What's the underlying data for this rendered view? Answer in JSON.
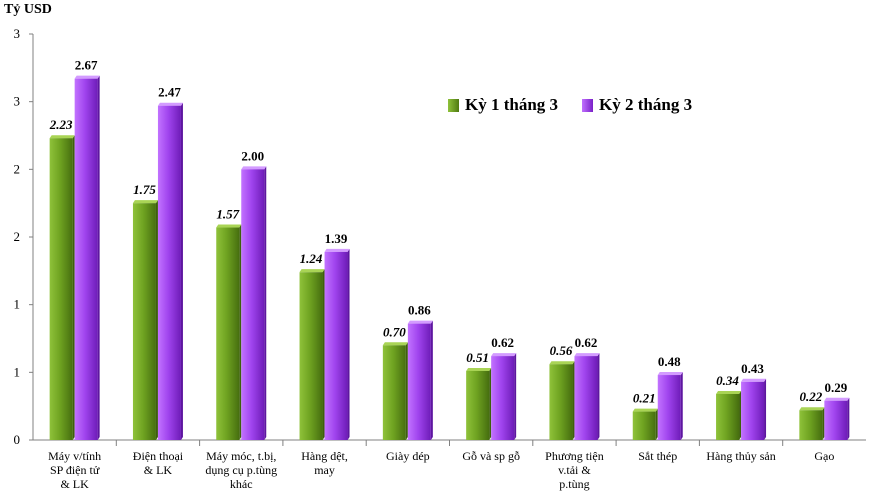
{
  "chart_data": {
    "type": "bar",
    "ylabel": "Tỷ USD",
    "categories": [
      "Máy v/tính SP điện tử & LK",
      "Điện thoại & LK",
      "Máy móc, t.bị, dụng cụ p.tùng khác",
      "Hàng dệt, may",
      "Giày dép",
      "Gỗ và sp gỗ",
      "Phương tiện v.tải & p.tùng",
      "Sắt thép",
      "Hàng thủy sản",
      "Gạo"
    ],
    "category_lines": [
      [
        "Máy v/tính",
        "SP điện tử",
        "& LK"
      ],
      [
        "Điện thoại",
        "& LK"
      ],
      [
        "Máy móc, t.bị,",
        "dụng cụ p.tùng",
        "khác"
      ],
      [
        "Hàng dệt,",
        "may"
      ],
      [
        "Giày dép"
      ],
      [
        "Gỗ và sp gỗ"
      ],
      [
        "Phương tiện",
        "v.tải &",
        "p.tùng"
      ],
      [
        "Sắt thép"
      ],
      [
        "Hàng thủy sản"
      ],
      [
        "Gạo"
      ]
    ],
    "series": [
      {
        "name": "Kỳ 1 tháng 3",
        "color": "#6a9a1f",
        "values": [
          2.23,
          1.75,
          1.57,
          1.24,
          0.7,
          0.51,
          0.56,
          0.21,
          0.34,
          0.22
        ],
        "labels": [
          "2.23",
          "1.75",
          "1.57",
          "1.24",
          "0.70",
          "0.51",
          "0.56",
          "0.21",
          "0.34",
          "0.22"
        ]
      },
      {
        "name": "Kỳ 2 tháng 3",
        "color": "#9a3ae6",
        "values": [
          2.67,
          2.47,
          2.0,
          1.39,
          0.86,
          0.62,
          0.62,
          0.48,
          0.43,
          0.29
        ],
        "labels": [
          "2.67",
          "2.47",
          "2.00",
          "1.39",
          "0.86",
          "0.62",
          "0.62",
          "0.48",
          "0.43",
          "0.29"
        ]
      }
    ],
    "ylim": [
      0,
      3
    ],
    "yticks": [
      0,
      0.5,
      1,
      1.5,
      2,
      2.5,
      3
    ],
    "ytick_labels": [
      "0",
      "1",
      "1",
      "2",
      "2",
      "3",
      "3"
    ],
    "legend_position": "top-right"
  }
}
